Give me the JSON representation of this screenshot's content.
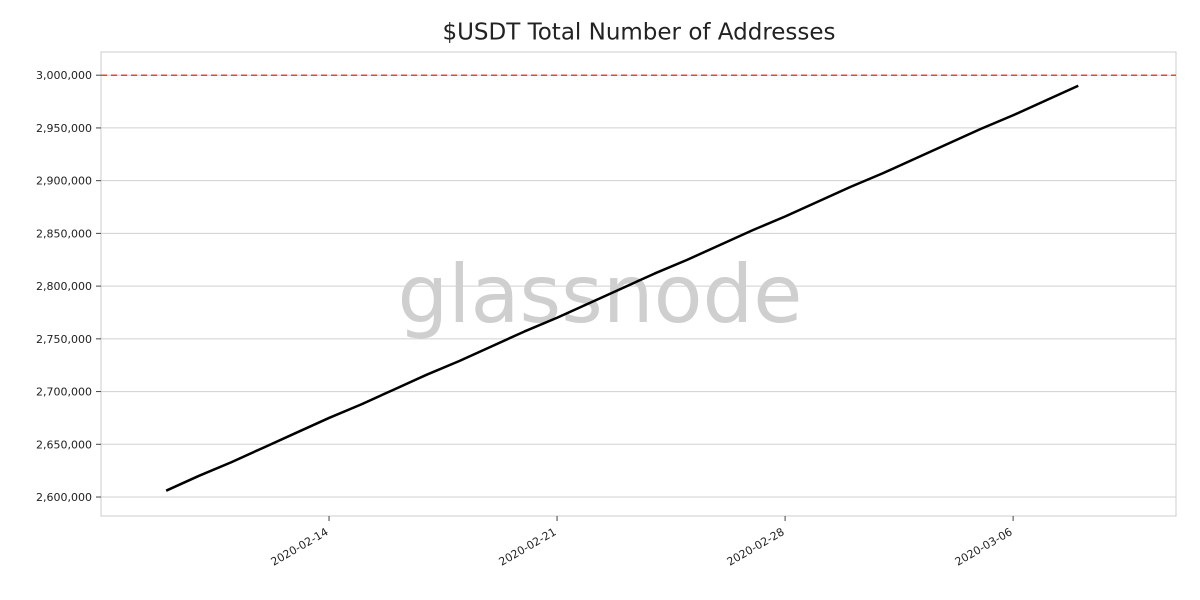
{
  "chart_data": {
    "type": "line",
    "title": "$USDT Total Number of Addresses",
    "watermark": "glassnode",
    "x": [
      "2020-02-09",
      "2020-02-10",
      "2020-02-11",
      "2020-02-12",
      "2020-02-13",
      "2020-02-14",
      "2020-02-15",
      "2020-02-16",
      "2020-02-17",
      "2020-02-18",
      "2020-02-19",
      "2020-02-20",
      "2020-02-21",
      "2020-02-22",
      "2020-02-23",
      "2020-02-24",
      "2020-02-25",
      "2020-02-26",
      "2020-02-27",
      "2020-02-28",
      "2020-02-29",
      "2020-03-01",
      "2020-03-02",
      "2020-03-03",
      "2020-03-04",
      "2020-03-05",
      "2020-03-06",
      "2020-03-07",
      "2020-03-08"
    ],
    "values": [
      2606000,
      2620000,
      2633000,
      2647000,
      2661000,
      2675000,
      2688000,
      2702000,
      2716000,
      2729000,
      2743000,
      2757000,
      2770000,
      2784000,
      2798000,
      2812000,
      2825000,
      2839000,
      2853000,
      2866000,
      2880000,
      2894000,
      2907000,
      2921000,
      2935000,
      2949000,
      2962000,
      2976000,
      2990000
    ],
    "color": "#000000",
    "xlim": [
      "2020-02-07",
      "2020-03-11"
    ],
    "xticks": [
      "2020-02-14",
      "2020-02-21",
      "2020-02-28",
      "2020-03-06"
    ],
    "ylim": [
      2582000,
      3022000
    ],
    "yticks": [
      {
        "value": 2600000,
        "label": "2,600,000"
      },
      {
        "value": 2650000,
        "label": "2,650,000"
      },
      {
        "value": 2700000,
        "label": "2,700,000"
      },
      {
        "value": 2750000,
        "label": "2,750,000"
      },
      {
        "value": 2800000,
        "label": "2,800,000"
      },
      {
        "value": 2850000,
        "label": "2,850,000"
      },
      {
        "value": 2900000,
        "label": "2,900,000"
      },
      {
        "value": 2950000,
        "label": "2,950,000"
      },
      {
        "value": 3000000,
        "label": "3,000,000"
      }
    ],
    "grid": true,
    "hline": {
      "value": 3000000,
      "color": "#e8443a"
    }
  }
}
